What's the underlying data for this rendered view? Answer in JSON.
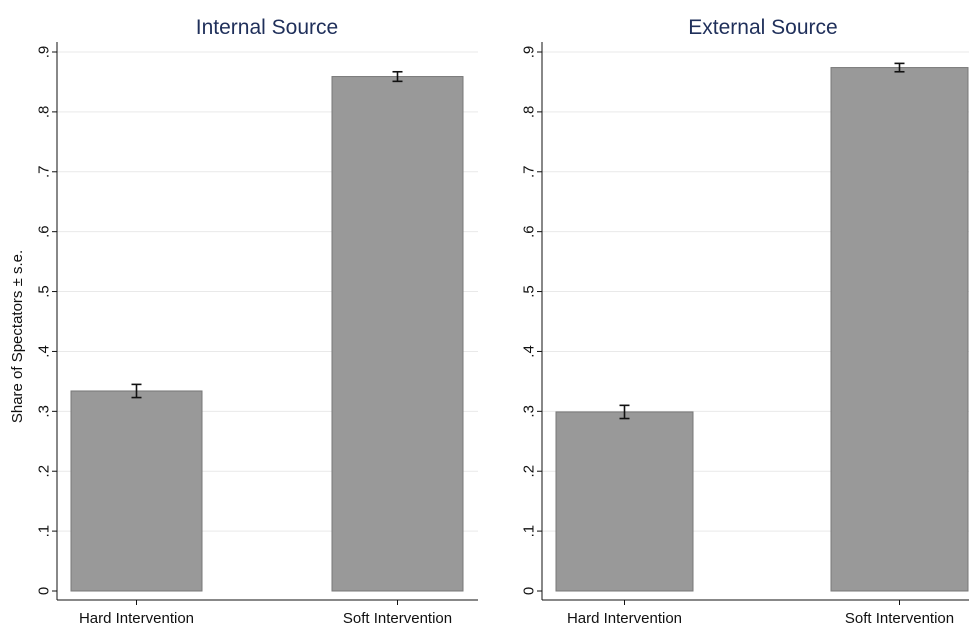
{
  "chart_data": [
    {
      "type": "bar",
      "title": "Internal Source",
      "ylabel": "Share of Spectators ± s.e.",
      "xlabel": "",
      "ylim": [
        0,
        0.92
      ],
      "yticks": [
        0,
        0.1,
        0.2,
        0.3,
        0.4,
        0.5,
        0.6,
        0.7,
        0.8,
        0.9
      ],
      "ytick_labels": [
        "0",
        ".1",
        ".2",
        ".3",
        ".4",
        ".5",
        ".6",
        ".7",
        ".8",
        ".9"
      ],
      "categories": [
        "Hard Intervention",
        "Soft Intervention"
      ],
      "values": [
        0.334,
        0.859
      ],
      "errors": [
        0.011,
        0.008
      ],
      "grid": true,
      "bar_color": "#999999"
    },
    {
      "type": "bar",
      "title": "External Source",
      "ylabel": "",
      "xlabel": "",
      "ylim": [
        0,
        0.92
      ],
      "yticks": [
        0,
        0.1,
        0.2,
        0.3,
        0.4,
        0.5,
        0.6,
        0.7,
        0.8,
        0.9
      ],
      "ytick_labels": [
        "0",
        ".1",
        ".2",
        ".3",
        ".4",
        ".5",
        ".6",
        ".7",
        ".8",
        ".9"
      ],
      "categories": [
        "Hard Intervention",
        "Soft Intervention"
      ],
      "values": [
        0.299,
        0.874
      ],
      "errors": [
        0.011,
        0.007
      ],
      "grid": true,
      "bar_color": "#999999"
    }
  ]
}
